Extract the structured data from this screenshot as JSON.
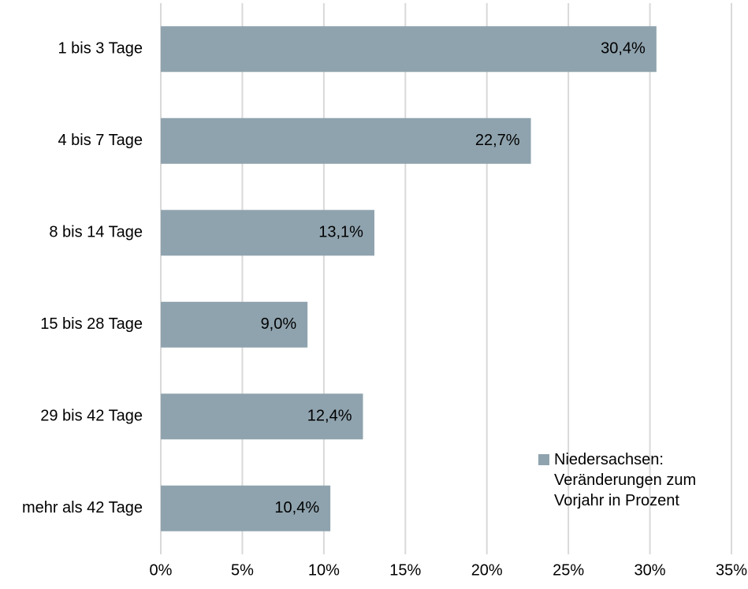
{
  "chart_data": {
    "type": "bar",
    "orientation": "horizontal",
    "categories": [
      "1 bis 3 Tage",
      "4 bis 7 Tage",
      "8 bis 14 Tage",
      "15 bis 28 Tage",
      "29 bis 42 Tage",
      "mehr als 42 Tage"
    ],
    "series": [
      {
        "name": "Niedersachsen: Veränderungen zum Vorjahr in Prozent",
        "color": "#8fa3ae",
        "values": [
          30.4,
          22.7,
          13.1,
          9.0,
          12.4,
          10.4
        ],
        "value_labels": [
          "30,4%",
          "22,7%",
          "13,1%",
          "9,0%",
          "12,4%",
          "10,4%"
        ]
      }
    ],
    "xlim": [
      0,
      35
    ],
    "xticks": [
      {
        "value": 0,
        "label": "0%"
      },
      {
        "value": 5,
        "label": "5%"
      },
      {
        "value": 10,
        "label": "10%"
      },
      {
        "value": 15,
        "label": "15%"
      },
      {
        "value": 20,
        "label": "20%"
      },
      {
        "value": 25,
        "label": "25%"
      },
      {
        "value": 30,
        "label": "30%"
      },
      {
        "value": 35,
        "label": "35%"
      }
    ],
    "grid": true,
    "legend": "bottom-right"
  }
}
